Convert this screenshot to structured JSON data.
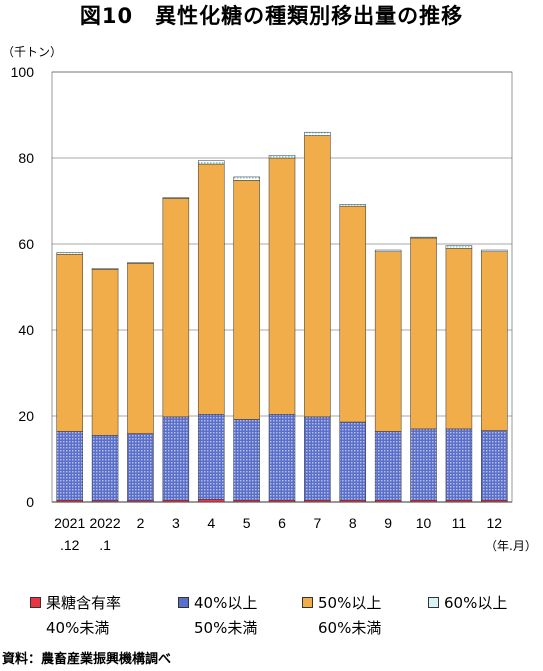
{
  "title": "図10　異性化糖の種類別移出量の推移",
  "unit_label": "（千トン）",
  "x_unit_label": "（年.月）",
  "source": "資料：農畜産業振興機構調べ",
  "colors": {
    "fructose_lt40": "#e8353f",
    "s40_50": "#5a6fc9",
    "s50_60": "#f2ad4b",
    "s60_plus": "#b9e6ec"
  },
  "legend": [
    {
      "line1": "果糖含有率",
      "line2": "40%未満",
      "color": "#e8353f",
      "pattern": "solid"
    },
    {
      "line1": "40%以上",
      "line2": "50%未満",
      "color": "#5a6fc9",
      "pattern": "dots"
    },
    {
      "line1": "50%以上",
      "line2": "60%未満",
      "color": "#f2ad4b",
      "pattern": "solid"
    },
    {
      "line1": "60%以上",
      "line2": "",
      "color": "#b9e6ec",
      "pattern": "dots"
    }
  ],
  "chart_data": {
    "type": "bar",
    "stacked": true,
    "ylim": [
      0,
      100
    ],
    "yticks": [
      0,
      20,
      40,
      60,
      80,
      100
    ],
    "grid": true,
    "legend_position": "bottom",
    "xlabel": "（年.月）",
    "ylabel": "（千トン）",
    "categories": [
      {
        "line1": "2021",
        "line2": ".12"
      },
      {
        "line1": "2022",
        "line2": ".1"
      },
      {
        "line1": "2",
        "line2": ""
      },
      {
        "line1": "3",
        "line2": ""
      },
      {
        "line1": "4",
        "line2": ""
      },
      {
        "line1": "5",
        "line2": ""
      },
      {
        "line1": "6",
        "line2": ""
      },
      {
        "line1": "7",
        "line2": ""
      },
      {
        "line1": "8",
        "line2": ""
      },
      {
        "line1": "9",
        "line2": ""
      },
      {
        "line1": "10",
        "line2": ""
      },
      {
        "line1": "11",
        "line2": ""
      },
      {
        "line1": "12",
        "line2": ""
      }
    ],
    "series": [
      {
        "name": "果糖含有率40%未満",
        "key": "fructose_lt40",
        "values": [
          0.4,
          0.3,
          0.3,
          0.4,
          0.6,
          0.4,
          0.4,
          0.4,
          0.4,
          0.4,
          0.4,
          0.4,
          0.4
        ]
      },
      {
        "name": "40%以上50%未満",
        "key": "s40_50",
        "values": [
          16.0,
          15.2,
          15.6,
          19.4,
          19.8,
          18.8,
          20.0,
          19.4,
          18.2,
          16.0,
          16.6,
          16.6,
          16.2
        ]
      },
      {
        "name": "50%以上60%未満",
        "key": "s50_60",
        "values": [
          41.2,
          38.6,
          39.6,
          50.8,
          58.2,
          55.6,
          59.6,
          65.4,
          50.2,
          41.8,
          44.4,
          42.0,
          41.6
        ]
      },
      {
        "name": "60%以上",
        "key": "s60_plus",
        "values": [
          0.4,
          0.2,
          0.2,
          0.2,
          0.8,
          0.8,
          0.6,
          0.8,
          0.4,
          0.4,
          0.2,
          0.6,
          0.4
        ]
      }
    ]
  }
}
